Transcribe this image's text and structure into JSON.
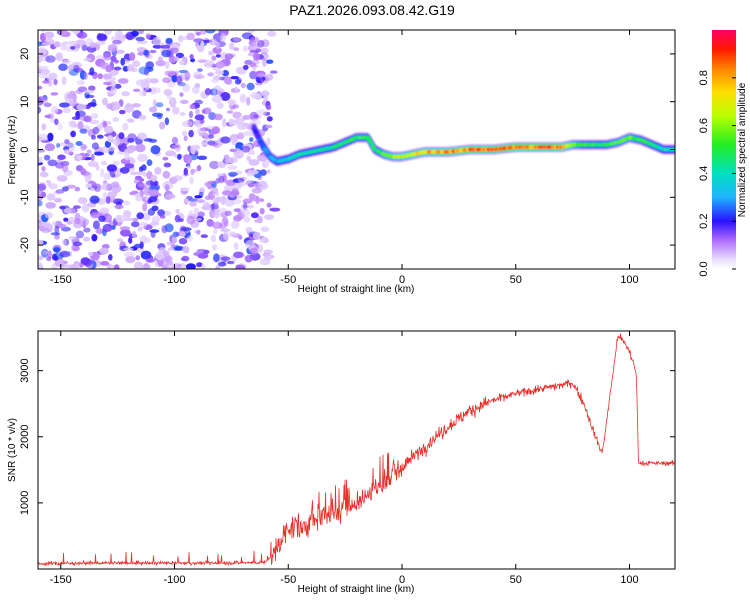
{
  "title": "PAZ1.2026.093.08.42.G19",
  "chart_data": [
    {
      "type": "heatmap",
      "title": "PAZ1.2026.093.08.42.G19",
      "xlabel": "Height of straight line (km)",
      "ylabel": "Frequency (Hz)",
      "xlim": [
        -160,
        120
      ],
      "ylim": [
        -25,
        25
      ],
      "xticks": [
        -150,
        -100,
        -50,
        0,
        50,
        100
      ],
      "yticks": [
        -20,
        -10,
        0,
        10,
        20
      ],
      "colorbar": {
        "label": "Normalized spectral amplitude",
        "range": [
          0,
          1
        ],
        "ticks": [
          0.0,
          0.2,
          0.4,
          0.6,
          0.8
        ]
      },
      "noise_region": {
        "x_range": [
          -160,
          -58
        ],
        "y_range": [
          -25,
          25
        ],
        "amplitude_range": [
          0.05,
          0.25
        ]
      },
      "ridge": {
        "x": [
          -65,
          -62,
          -58,
          -55,
          -50,
          -45,
          -40,
          -35,
          -30,
          -25,
          -20,
          -15,
          -12,
          -8,
          -4,
          0,
          10,
          20,
          30,
          40,
          50,
          60,
          70,
          75,
          80,
          85,
          90,
          95,
          100,
          105,
          110,
          115,
          120
        ],
        "y": [
          4.5,
          1.5,
          -1.5,
          -2.5,
          -2.0,
          -1.0,
          -0.5,
          0.0,
          0.5,
          1.5,
          2.5,
          2.5,
          0.0,
          -1.0,
          -1.5,
          -1.5,
          -0.5,
          -0.5,
          0.0,
          0.0,
          0.5,
          0.5,
          0.5,
          1.0,
          1.0,
          1.0,
          1.0,
          1.5,
          2.5,
          2.0,
          1.0,
          0.0,
          0.0
        ],
        "amplitude": [
          0.15,
          0.25,
          0.3,
          0.3,
          0.35,
          0.4,
          0.4,
          0.45,
          0.45,
          0.45,
          0.5,
          0.5,
          0.45,
          0.55,
          0.6,
          0.65,
          0.75,
          0.8,
          0.85,
          0.85,
          0.85,
          0.85,
          0.85,
          0.6,
          0.5,
          0.5,
          0.5,
          0.55,
          0.55,
          0.5,
          0.45,
          0.4,
          0.35
        ]
      }
    },
    {
      "type": "line",
      "xlabel": "Height of straight line (km)",
      "ylabel": "SNR (10 * v/v)",
      "xlim": [
        -160,
        120
      ],
      "ylim": [
        0,
        3600
      ],
      "xticks": [
        -150,
        -100,
        -50,
        0,
        50,
        100
      ],
      "yticks": [
        1000,
        2000,
        3000
      ],
      "series": [
        {
          "name": "SNR",
          "color": "#e8302a",
          "x": [
            -160,
            -140,
            -120,
            -100,
            -80,
            -60,
            -55,
            -50,
            -45,
            -40,
            -30,
            -20,
            -10,
            0,
            10,
            20,
            30,
            40,
            50,
            60,
            70,
            75,
            80,
            85,
            88,
            90,
            95,
            100,
            103,
            104,
            110,
            120
          ],
          "y": [
            80,
            90,
            90,
            90,
            90,
            100,
            300,
            650,
            600,
            700,
            850,
            1000,
            1250,
            1550,
            1850,
            2150,
            2400,
            2550,
            2650,
            2720,
            2780,
            2820,
            2500,
            2000,
            1750,
            2250,
            3550,
            3300,
            2950,
            1600,
            1600,
            1600
          ]
        }
      ]
    }
  ]
}
